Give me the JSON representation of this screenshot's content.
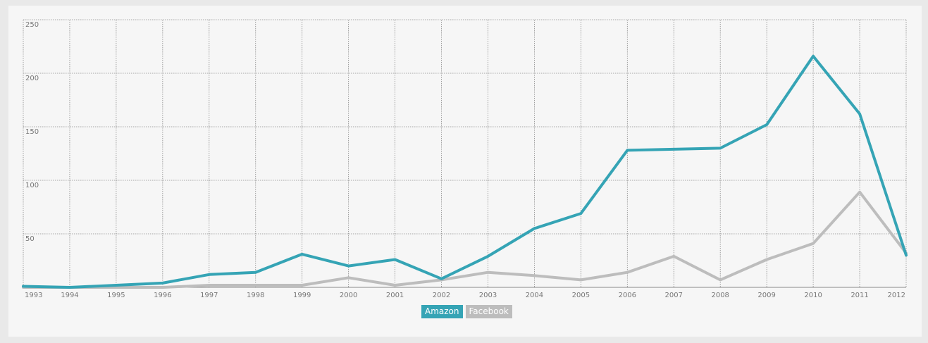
{
  "chart_data": {
    "type": "line",
    "x": [
      "1993",
      "1994",
      "1995",
      "1996",
      "1997",
      "1998",
      "1999",
      "2000",
      "2001",
      "2002",
      "2003",
      "2004",
      "2005",
      "2006",
      "2007",
      "2008",
      "2009",
      "2010",
      "2011",
      "2012"
    ],
    "ylim": [
      0,
      250
    ],
    "yticks": [
      250,
      200,
      150,
      100,
      50
    ],
    "grid": true,
    "legend_position": "bottom-center",
    "series": [
      {
        "name": "Amazon",
        "color": "#35a4b5",
        "values": [
          1,
          0,
          2,
          4,
          12,
          14,
          31,
          20,
          26,
          8,
          29,
          55,
          69,
          128,
          129,
          130,
          152,
          216,
          162,
          30
        ]
      },
      {
        "name": "Facebook",
        "color": "#bdbdbd",
        "values": [
          0,
          0,
          0,
          0,
          2,
          2,
          2,
          9,
          2,
          7,
          14,
          11,
          7,
          14,
          29,
          7,
          26,
          41,
          89,
          32
        ]
      }
    ]
  }
}
